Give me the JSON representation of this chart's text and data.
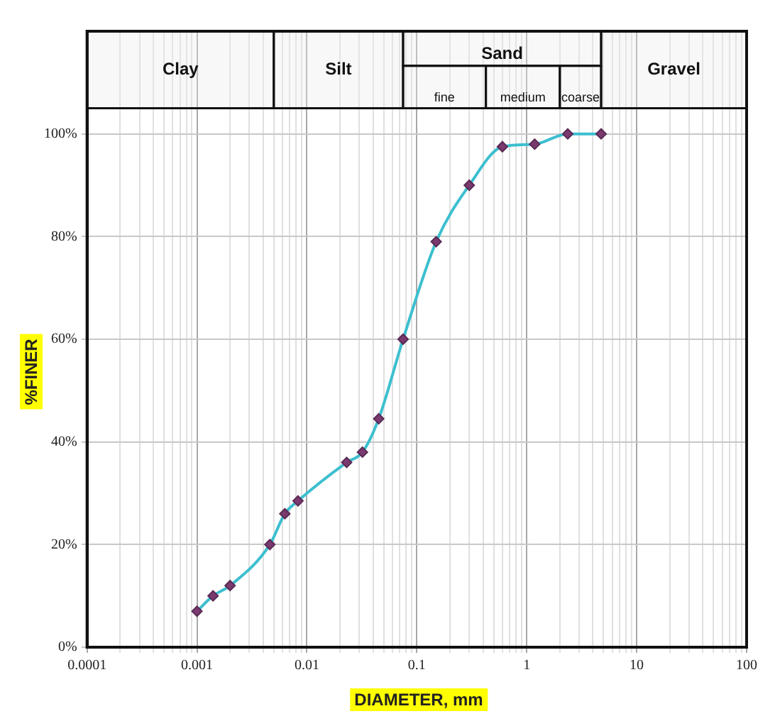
{
  "chart_data": {
    "type": "line",
    "xlabel": "DIAMETER, mm",
    "ylabel": "%FINER",
    "x": [
      0.001,
      0.0014,
      0.002,
      0.0046,
      0.0063,
      0.0083,
      0.023,
      0.032,
      0.045,
      0.075,
      0.15,
      0.3,
      0.6,
      1.18,
      2.36,
      4.75
    ],
    "series": [
      {
        "color": "#3cbfcf",
        "values": [
          7,
          10,
          12,
          20,
          26,
          28.5,
          36,
          38,
          44.5,
          60,
          79,
          90,
          97.5,
          98,
          100,
          100
        ]
      }
    ],
    "log": "x",
    "marker": "diamond",
    "grid": true,
    "legend": false,
    "xlim": [
      0.0001,
      100
    ],
    "xticks": [
      0.0001,
      {
        "value": 0.0002,
        "label": null
      },
      {
        "value": 0.0003,
        "label": null
      },
      {
        "value": 0.0004,
        "label": null
      },
      {
        "value": 0.0005,
        "label": null
      },
      {
        "value": 0.0006,
        "label": null
      },
      {
        "value": 0.0007,
        "label": null
      },
      {
        "value": 0.0008,
        "label": null
      },
      {
        "value": 0.0009,
        "label": null
      },
      0.001,
      {
        "value": 0.002,
        "label": null
      },
      {
        "value": 0.003,
        "label": null
      },
      {
        "value": 0.004,
        "label": null
      },
      {
        "value": 0.005,
        "label": null
      },
      {
        "value": 0.006,
        "label": null
      },
      {
        "value": 0.007,
        "label": null
      },
      {
        "value": 0.008,
        "label": null
      },
      {
        "value": 0.009,
        "label": null
      },
      0.01,
      {
        "value": 0.02,
        "label": null
      },
      {
        "value": 0.03,
        "label": null
      },
      {
        "value": 0.04,
        "label": null
      },
      {
        "value": 0.05,
        "label": null
      },
      {
        "value": 0.06,
        "label": null
      },
      {
        "value": 0.07,
        "label": null
      },
      {
        "value": 0.08,
        "label": null
      },
      {
        "value": 0.09,
        "label": null
      },
      0.1,
      {
        "value": 0.2,
        "label": null
      },
      {
        "value": 0.3,
        "label": null
      },
      {
        "value": 0.4,
        "label": null
      },
      {
        "value": 0.5,
        "label": null
      },
      {
        "value": 0.6,
        "label": null
      },
      {
        "value": 0.7,
        "label": null
      },
      {
        "value": 0.8,
        "label": null
      },
      {
        "value": 0.9,
        "label": null
      },
      1,
      {
        "value": 2,
        "label": null
      },
      {
        "value": 3,
        "label": null
      },
      {
        "value": 4,
        "label": null
      },
      {
        "value": 5,
        "label": null
      },
      {
        "value": 6,
        "label": null
      },
      {
        "value": 7,
        "label": null
      },
      {
        "value": 8,
        "label": null
      },
      {
        "value": 9,
        "label": null
      },
      10,
      {
        "value": 20,
        "label": null
      },
      {
        "value": 30,
        "label": null
      },
      {
        "value": 40,
        "label": null
      },
      {
        "value": 50,
        "label": null
      },
      {
        "value": 60,
        "label": null
      },
      {
        "value": 70,
        "label": null
      },
      {
        "value": 80,
        "label": null
      },
      {
        "value": 90,
        "label": null
      },
      100
    ],
    "ylim": [
      0,
      120
    ],
    "yticks": [
      {
        "value": 0,
        "label": "0%"
      },
      {
        "value": 20,
        "label": "20%"
      },
      {
        "value": 40,
        "label": "40%"
      },
      {
        "value": 60,
        "label": "60%"
      },
      {
        "value": 80,
        "label": "80%"
      },
      {
        "value": 100,
        "label": "100%"
      }
    ],
    "bands": [
      {
        "axis": "x",
        "from": 0.0001,
        "to": 0.005,
        "label": "Clay"
      },
      {
        "axis": "x",
        "from": 0.005,
        "to": 0.075,
        "label": "Silt"
      },
      {
        "axis": "x",
        "from": 0.075,
        "to": 4.75,
        "label": "Sand"
      },
      {
        "axis": "x",
        "from": 0.075,
        "to": 0.425,
        "label": "fine"
      },
      {
        "axis": "x",
        "from": 0.425,
        "to": 2,
        "label": "medium"
      },
      {
        "axis": "x",
        "from": 2,
        "to": 4.75,
        "label": "coarse"
      },
      {
        "axis": "x",
        "from": 4.75,
        "to": 100,
        "label": "Gravel"
      }
    ]
  }
}
